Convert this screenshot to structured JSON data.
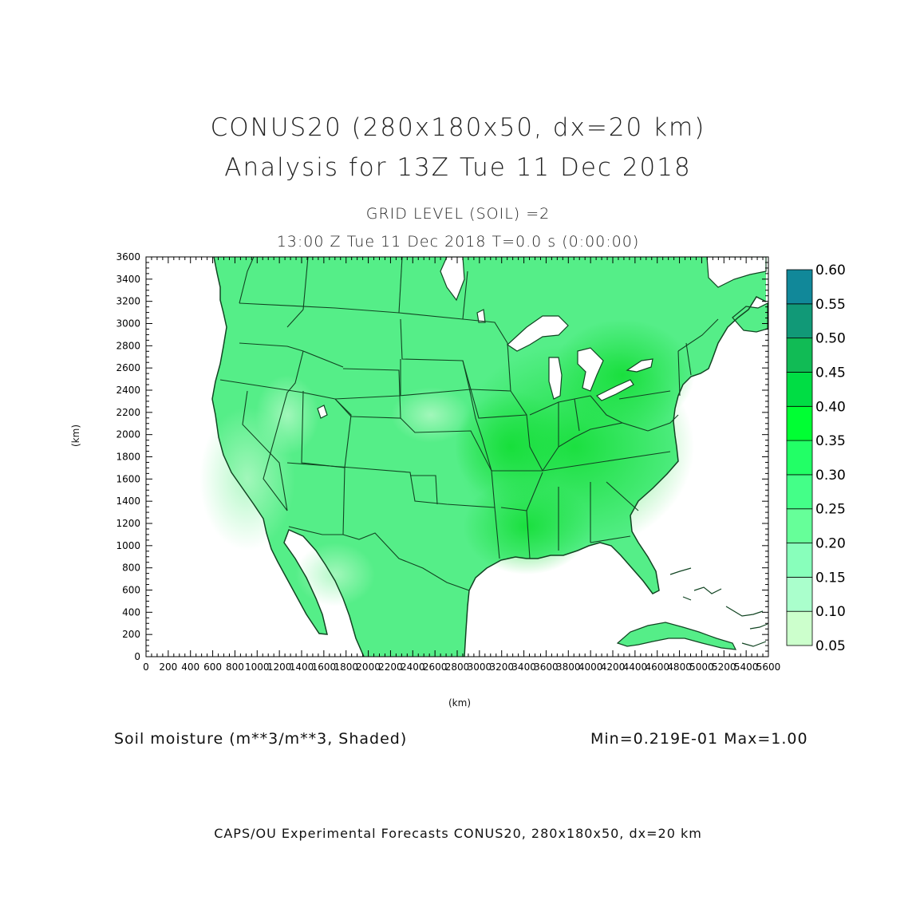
{
  "header": {
    "title_line1": "CONUS20 (280x180x50, dx=20 km)",
    "title_line2": "Analysis for 13Z Tue 11 Dec 2018",
    "level": "GRID LEVEL (SOIL) =2",
    "valid_time": "13:00 Z Tue 11 Dec 2018    T=0.0 s (0:00:00)"
  },
  "axes": {
    "x_unit": "(km)",
    "y_unit": "(km)",
    "x_ticks": [
      "0",
      "200",
      "400",
      "600",
      "800",
      "1000",
      "1200",
      "1400",
      "1600",
      "1800",
      "2000",
      "2200",
      "2400",
      "2600",
      "2800",
      "3000",
      "3200",
      "3400",
      "3600",
      "3800",
      "4000",
      "4200",
      "4400",
      "4600",
      "4800",
      "5000",
      "5200",
      "5400",
      "5600"
    ],
    "y_ticks": [
      "0",
      "200",
      "400",
      "600",
      "800",
      "1000",
      "1200",
      "1400",
      "1600",
      "1800",
      "2000",
      "2200",
      "2400",
      "2600",
      "2800",
      "3000",
      "3200",
      "3400",
      "3600"
    ],
    "x_range": [
      0,
      5600
    ],
    "y_range": [
      0,
      3600
    ]
  },
  "colorbar": {
    "labels": [
      "0.05",
      "0.10",
      "0.15",
      "0.20",
      "0.25",
      "0.30",
      "0.35",
      "0.40",
      "0.45",
      "0.50",
      "0.55",
      "0.60"
    ],
    "colors": [
      "#ccffcc",
      "#aaffcc",
      "#88ffbb",
      "#66ff99",
      "#44ff88",
      "#22ff66",
      "#00ff33",
      "#00dd44",
      "#11bb55",
      "#119977",
      "#118899",
      "#1166ee"
    ]
  },
  "map_colors": {
    "land_base": "#55ee88",
    "land_light": "#88f5aa",
    "land_dark": "#22dd44",
    "boundary": "#114422",
    "water": "#ffffff"
  },
  "footer": {
    "variable": "Soil moisture (m**3/m**3, Shaded)",
    "minmax": "Min=0.219E-01 Max=1.00",
    "credit": "CAPS/OU Experimental Forecasts  CONUS20, 280x180x50, dx=20 km"
  }
}
